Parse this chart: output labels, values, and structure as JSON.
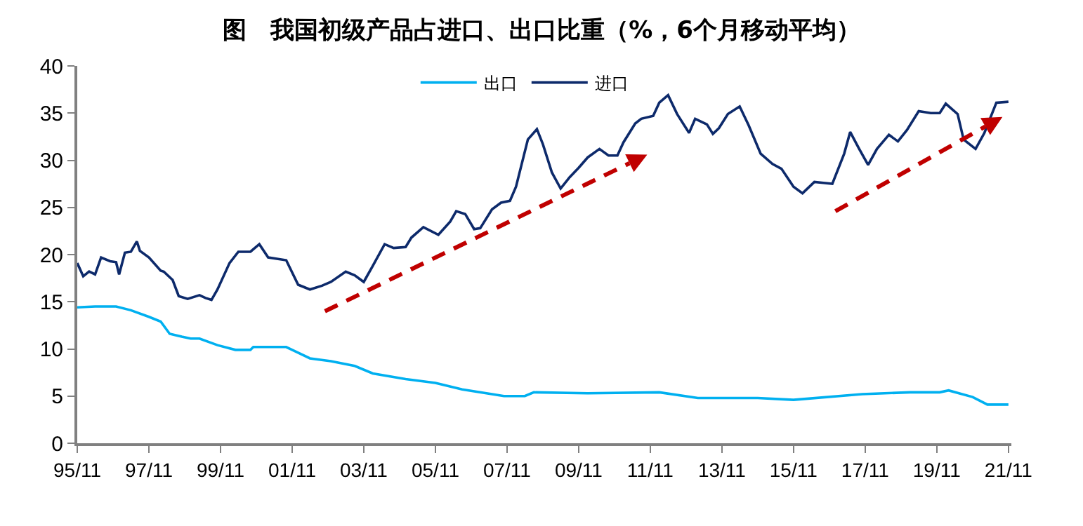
{
  "chart_data": {
    "type": "line",
    "title": "图　我国初级产品占进口、出口比重（%，6个月移动平均）",
    "xlim": [
      "1995-11",
      "2021-12"
    ],
    "xticks": [
      {
        "value": "1995-11",
        "label": "95/11"
      },
      {
        "value": "1997-11",
        "label": "97/11"
      },
      {
        "value": "1999-11",
        "label": "99/11"
      },
      {
        "value": "2001-11",
        "label": "01/11"
      },
      {
        "value": "2003-11",
        "label": "03/11"
      },
      {
        "value": "2005-11",
        "label": "05/11"
      },
      {
        "value": "2007-11",
        "label": "07/11"
      },
      {
        "value": "2009-11",
        "label": "09/11"
      },
      {
        "value": "2011-11",
        "label": "11/11"
      },
      {
        "value": "2013-11",
        "label": "13/11"
      },
      {
        "value": "2015-11",
        "label": "15/11"
      },
      {
        "value": "2017-11",
        "label": "17/11"
      },
      {
        "value": "2019-11",
        "label": "19/11"
      },
      {
        "value": "2021-11",
        "label": "21/11"
      }
    ],
    "ylim": [
      0,
      40
    ],
    "yticks": [
      0,
      5,
      10,
      15,
      20,
      25,
      30,
      35,
      40
    ],
    "grid": false,
    "legend": "top",
    "marker": "none",
    "line_style": "solid",
    "series": [
      {
        "name": "出口",
        "color": "#00b0f0",
        "x": [
          "1995-11",
          "1996-05",
          "1996-12",
          "1997-05",
          "1997-11",
          "1998-03",
          "1998-06",
          "1998-10",
          "1999-01",
          "1999-04",
          "1999-10",
          "2000-04",
          "2000-09",
          "2000-10",
          "2001-09",
          "2001-11",
          "2002-05",
          "2002-12",
          "2003-08",
          "2004-02",
          "2005-01",
          "2005-11",
          "2006-08",
          "2007-06",
          "2007-10",
          "2008-05",
          "2008-08",
          "2010-02",
          "2012-02",
          "2013-03",
          "2014-11",
          "2015-11",
          "2017-10",
          "2019-02",
          "2019-12",
          "2020-03",
          "2020-11",
          "2021-04",
          "2021-11"
        ],
        "values": [
          14.4,
          14.5,
          14.5,
          14.1,
          13.4,
          12.9,
          11.6,
          11.3,
          11.1,
          11.1,
          10.4,
          9.9,
          9.9,
          10.2,
          10.2,
          9.9,
          9.0,
          8.7,
          8.2,
          7.4,
          6.8,
          6.4,
          5.7,
          5.2,
          5.0,
          5.0,
          5.4,
          5.3,
          5.4,
          4.8,
          4.8,
          4.6,
          5.2,
          5.4,
          5.4,
          5.6,
          4.9,
          4.1,
          4.1
        ]
      },
      {
        "name": "进口",
        "color": "#0d2a6b",
        "x": [
          "1995-11",
          "1996-01",
          "1996-03",
          "1996-05",
          "1996-07",
          "1996-10",
          "1996-12",
          "1997-01",
          "1997-03",
          "1997-05",
          "1997-07",
          "1997-08",
          "1997-11",
          "1998-03",
          "1998-04",
          "1998-07",
          "1998-09",
          "1998-12",
          "1999-04",
          "1999-06",
          "1999-08",
          "1999-10",
          "2000-02",
          "2000-05",
          "2000-09",
          "2000-12",
          "2001-03",
          "2001-09",
          "2002-01",
          "2002-05",
          "2002-09",
          "2002-12",
          "2003-05",
          "2003-08",
          "2003-11",
          "2004-02",
          "2004-06",
          "2004-09",
          "2005-01",
          "2005-03",
          "2005-07",
          "2005-12",
          "2006-04",
          "2006-06",
          "2006-09",
          "2006-12",
          "2007-02",
          "2007-06",
          "2007-09",
          "2007-12",
          "2008-02",
          "2008-06",
          "2008-09",
          "2008-11",
          "2009-02",
          "2009-05",
          "2009-08",
          "2009-11",
          "2010-02",
          "2010-06",
          "2010-09",
          "2010-12",
          "2011-02",
          "2011-06",
          "2011-08",
          "2011-12",
          "2012-02",
          "2012-05",
          "2012-08",
          "2012-12",
          "2013-02",
          "2013-06",
          "2013-08",
          "2013-10",
          "2014-01",
          "2014-05",
          "2014-08",
          "2014-12",
          "2015-04",
          "2015-07",
          "2015-11",
          "2016-02",
          "2016-06",
          "2016-09",
          "2016-12",
          "2017-04",
          "2017-06",
          "2017-09",
          "2017-12",
          "2018-03",
          "2018-07",
          "2018-10",
          "2019-01",
          "2019-05",
          "2019-09",
          "2019-12",
          "2020-02",
          "2020-06",
          "2020-08",
          "2020-12",
          "2021-03",
          "2021-07",
          "2021-11"
        ],
        "values": [
          19.1,
          17.7,
          18.2,
          17.9,
          19.7,
          19.3,
          19.2,
          17.9,
          20.2,
          20.3,
          21.4,
          20.4,
          19.7,
          18.3,
          18.2,
          17.3,
          15.6,
          15.3,
          15.7,
          15.4,
          15.2,
          16.3,
          19.1,
          20.3,
          20.3,
          21.1,
          19.7,
          19.4,
          16.8,
          16.3,
          16.7,
          17.1,
          18.2,
          17.8,
          17.1,
          18.8,
          21.1,
          20.7,
          20.8,
          21.8,
          22.9,
          22.1,
          23.5,
          24.6,
          24.3,
          22.7,
          22.8,
          24.8,
          25.5,
          25.7,
          27.2,
          32.2,
          33.3,
          31.7,
          28.7,
          27.0,
          28.2,
          29.2,
          30.3,
          31.2,
          30.5,
          30.5,
          31.9,
          33.9,
          34.4,
          34.7,
          36.1,
          36.9,
          34.9,
          32.9,
          34.4,
          33.8,
          32.8,
          33.4,
          34.9,
          35.7,
          33.7,
          30.7,
          29.6,
          29.1,
          27.2,
          26.5,
          27.7,
          27.6,
          27.5,
          30.7,
          33.0,
          31.2,
          29.5,
          31.2,
          32.7,
          32.0,
          33.2,
          35.2,
          35.0,
          35.0,
          36.0,
          34.9,
          32.2,
          31.2,
          32.9,
          36.1,
          36.2
        ]
      }
    ]
  }
}
